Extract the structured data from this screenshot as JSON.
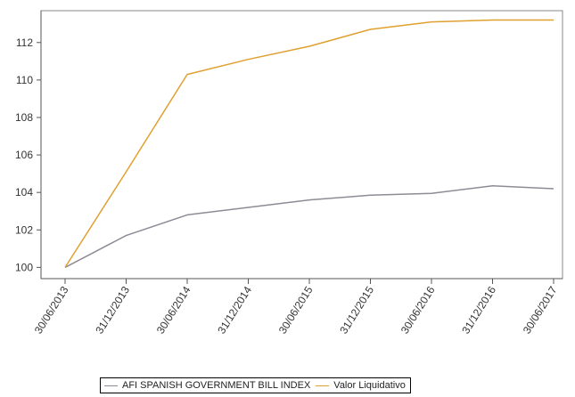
{
  "chart_data": {
    "type": "line",
    "title": "",
    "xlabel": "",
    "ylabel": "",
    "categories": [
      "30/06/2013",
      "31/12/2013",
      "30/06/2014",
      "31/12/2014",
      "30/06/2015",
      "31/12/2015",
      "30/06/2016",
      "31/12/2016",
      "30/06/2017"
    ],
    "ylim": [
      99.4,
      113.7
    ],
    "yticks": [
      100,
      102,
      104,
      106,
      108,
      110,
      112
    ],
    "grid": false,
    "legend_position": "bottom",
    "series": [
      {
        "name": "AFI SPANISH GOVERNMENT BILL INDEX",
        "color": "#8c8c96",
        "values": [
          100.0,
          101.7,
          102.8,
          103.2,
          103.6,
          103.85,
          103.95,
          104.35,
          104.2
        ]
      },
      {
        "name": "Valor Liquidativo",
        "color": "#e0a030",
        "values": [
          100.0,
          105.1,
          110.3,
          111.1,
          111.8,
          112.7,
          113.1,
          113.2,
          113.2
        ]
      }
    ]
  }
}
